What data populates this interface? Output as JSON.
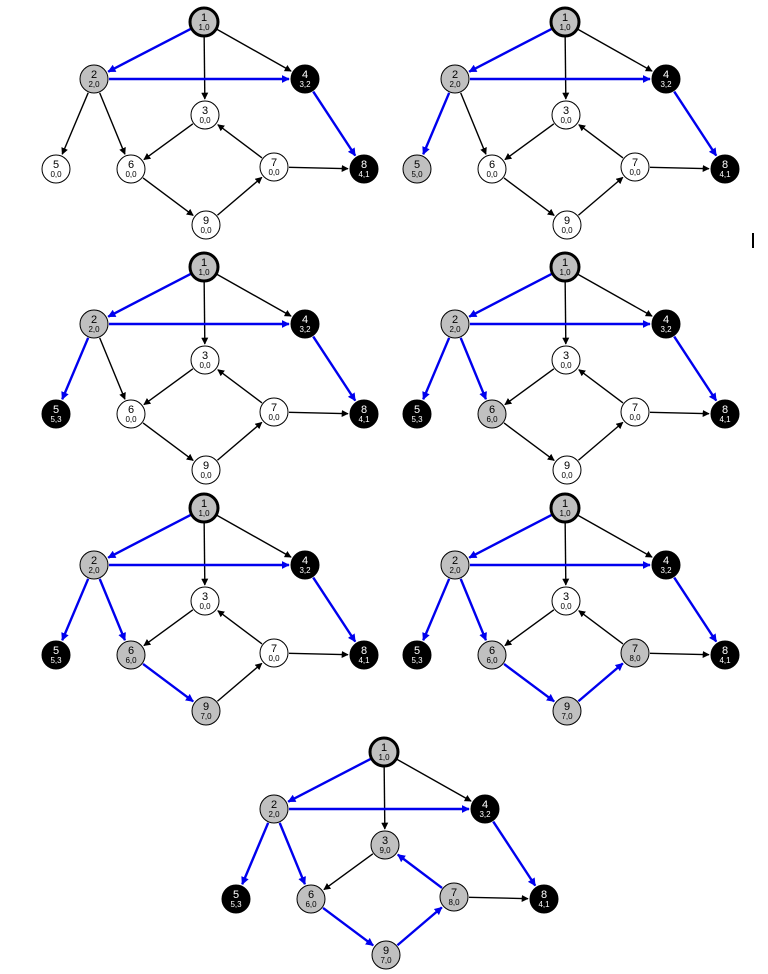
{
  "colors": {
    "tree_edge": "#0000ee",
    "plain_edge": "#000000",
    "white": "#ffffff",
    "gray": "#c0c0c0",
    "black": "#000000",
    "outline": "#000000"
  },
  "edges": [
    {
      "from": "1",
      "to": "2"
    },
    {
      "from": "1",
      "to": "3"
    },
    {
      "from": "1",
      "to": "4"
    },
    {
      "from": "2",
      "to": "4"
    },
    {
      "from": "2",
      "to": "5"
    },
    {
      "from": "2",
      "to": "6"
    },
    {
      "from": "3",
      "to": "6"
    },
    {
      "from": "4",
      "to": "8"
    },
    {
      "from": "6",
      "to": "9"
    },
    {
      "from": "7",
      "to": "3"
    },
    {
      "from": "7",
      "to": "8"
    },
    {
      "from": "9",
      "to": "7"
    }
  ],
  "panels": [
    {
      "nodes": {
        "1": {
          "label": "1",
          "times": "1,0",
          "color": "gray",
          "root": true
        },
        "2": {
          "label": "2",
          "times": "2,0",
          "color": "gray"
        },
        "3": {
          "label": "3",
          "times": "0,0",
          "color": "white"
        },
        "4": {
          "label": "4",
          "times": "3,2",
          "color": "black"
        },
        "5": {
          "label": "5",
          "times": "0,0",
          "color": "white"
        },
        "6": {
          "label": "6",
          "times": "0,0",
          "color": "white"
        },
        "7": {
          "label": "7",
          "times": "0,0",
          "color": "white"
        },
        "8": {
          "label": "8",
          "times": "4,1",
          "color": "black"
        },
        "9": {
          "label": "9",
          "times": "0,0",
          "color": "white"
        }
      },
      "tree_edges": [
        "1-2",
        "2-4",
        "4-8"
      ]
    },
    {
      "nodes": {
        "1": {
          "label": "1",
          "times": "1,0",
          "color": "gray",
          "root": true
        },
        "2": {
          "label": "2",
          "times": "2,0",
          "color": "gray"
        },
        "3": {
          "label": "3",
          "times": "0,0",
          "color": "white"
        },
        "4": {
          "label": "4",
          "times": "3,2",
          "color": "black"
        },
        "5": {
          "label": "5",
          "times": "5,0",
          "color": "gray"
        },
        "6": {
          "label": "6",
          "times": "0,0",
          "color": "white"
        },
        "7": {
          "label": "7",
          "times": "0,0",
          "color": "white"
        },
        "8": {
          "label": "8",
          "times": "4,1",
          "color": "black"
        },
        "9": {
          "label": "9",
          "times": "0,0",
          "color": "white"
        }
      },
      "tree_edges": [
        "1-2",
        "2-4",
        "4-8",
        "2-5"
      ]
    },
    {
      "nodes": {
        "1": {
          "label": "1",
          "times": "1,0",
          "color": "gray",
          "root": true
        },
        "2": {
          "label": "2",
          "times": "2,0",
          "color": "gray"
        },
        "3": {
          "label": "3",
          "times": "0,0",
          "color": "white"
        },
        "4": {
          "label": "4",
          "times": "3,2",
          "color": "black"
        },
        "5": {
          "label": "5",
          "times": "5,3",
          "color": "black"
        },
        "6": {
          "label": "6",
          "times": "0,0",
          "color": "white"
        },
        "7": {
          "label": "7",
          "times": "0,0",
          "color": "white"
        },
        "8": {
          "label": "8",
          "times": "4,1",
          "color": "black"
        },
        "9": {
          "label": "9",
          "times": "0,0",
          "color": "white"
        }
      },
      "tree_edges": [
        "1-2",
        "2-4",
        "4-8",
        "2-5"
      ]
    },
    {
      "nodes": {
        "1": {
          "label": "1",
          "times": "1,0",
          "color": "gray",
          "root": true
        },
        "2": {
          "label": "2",
          "times": "2,0",
          "color": "gray"
        },
        "3": {
          "label": "3",
          "times": "0,0",
          "color": "white"
        },
        "4": {
          "label": "4",
          "times": "3,2",
          "color": "black"
        },
        "5": {
          "label": "5",
          "times": "5,3",
          "color": "black"
        },
        "6": {
          "label": "6",
          "times": "6,0",
          "color": "gray"
        },
        "7": {
          "label": "7",
          "times": "0,0",
          "color": "white"
        },
        "8": {
          "label": "8",
          "times": "4,1",
          "color": "black"
        },
        "9": {
          "label": "9",
          "times": "0,0",
          "color": "white"
        }
      },
      "tree_edges": [
        "1-2",
        "2-4",
        "4-8",
        "2-5",
        "2-6"
      ]
    },
    {
      "nodes": {
        "1": {
          "label": "1",
          "times": "1,0",
          "color": "gray",
          "root": true
        },
        "2": {
          "label": "2",
          "times": "2,0",
          "color": "gray"
        },
        "3": {
          "label": "3",
          "times": "0,0",
          "color": "white"
        },
        "4": {
          "label": "4",
          "times": "3,2",
          "color": "black"
        },
        "5": {
          "label": "5",
          "times": "5,3",
          "color": "black"
        },
        "6": {
          "label": "6",
          "times": "6,0",
          "color": "gray"
        },
        "7": {
          "label": "7",
          "times": "0,0",
          "color": "white"
        },
        "8": {
          "label": "8",
          "times": "4,1",
          "color": "black"
        },
        "9": {
          "label": "9",
          "times": "7,0",
          "color": "gray"
        }
      },
      "tree_edges": [
        "1-2",
        "2-4",
        "4-8",
        "2-5",
        "2-6",
        "6-9"
      ]
    },
    {
      "nodes": {
        "1": {
          "label": "1",
          "times": "1,0",
          "color": "gray",
          "root": true
        },
        "2": {
          "label": "2",
          "times": "2,0",
          "color": "gray"
        },
        "3": {
          "label": "3",
          "times": "0,0",
          "color": "white"
        },
        "4": {
          "label": "4",
          "times": "3,2",
          "color": "black"
        },
        "5": {
          "label": "5",
          "times": "5,3",
          "color": "black"
        },
        "6": {
          "label": "6",
          "times": "6,0",
          "color": "gray"
        },
        "7": {
          "label": "7",
          "times": "8,0",
          "color": "gray"
        },
        "8": {
          "label": "8",
          "times": "4,1",
          "color": "black"
        },
        "9": {
          "label": "9",
          "times": "7,0",
          "color": "gray"
        }
      },
      "tree_edges": [
        "1-2",
        "2-4",
        "4-8",
        "2-5",
        "2-6",
        "6-9",
        "9-7"
      ]
    },
    {
      "nodes": {
        "1": {
          "label": "1",
          "times": "1,0",
          "color": "gray",
          "root": true
        },
        "2": {
          "label": "2",
          "times": "2,0",
          "color": "gray"
        },
        "3": {
          "label": "3",
          "times": "9,0",
          "color": "gray"
        },
        "4": {
          "label": "4",
          "times": "3,2",
          "color": "black"
        },
        "5": {
          "label": "5",
          "times": "5,3",
          "color": "black"
        },
        "6": {
          "label": "6",
          "times": "6,0",
          "color": "gray"
        },
        "7": {
          "label": "7",
          "times": "8,0",
          "color": "gray"
        },
        "8": {
          "label": "8",
          "times": "4,1",
          "color": "black"
        },
        "9": {
          "label": "9",
          "times": "7,0",
          "color": "gray"
        }
      },
      "tree_edges": [
        "1-2",
        "2-4",
        "4-8",
        "2-5",
        "2-6",
        "6-9",
        "9-7",
        "7-3"
      ]
    }
  ]
}
